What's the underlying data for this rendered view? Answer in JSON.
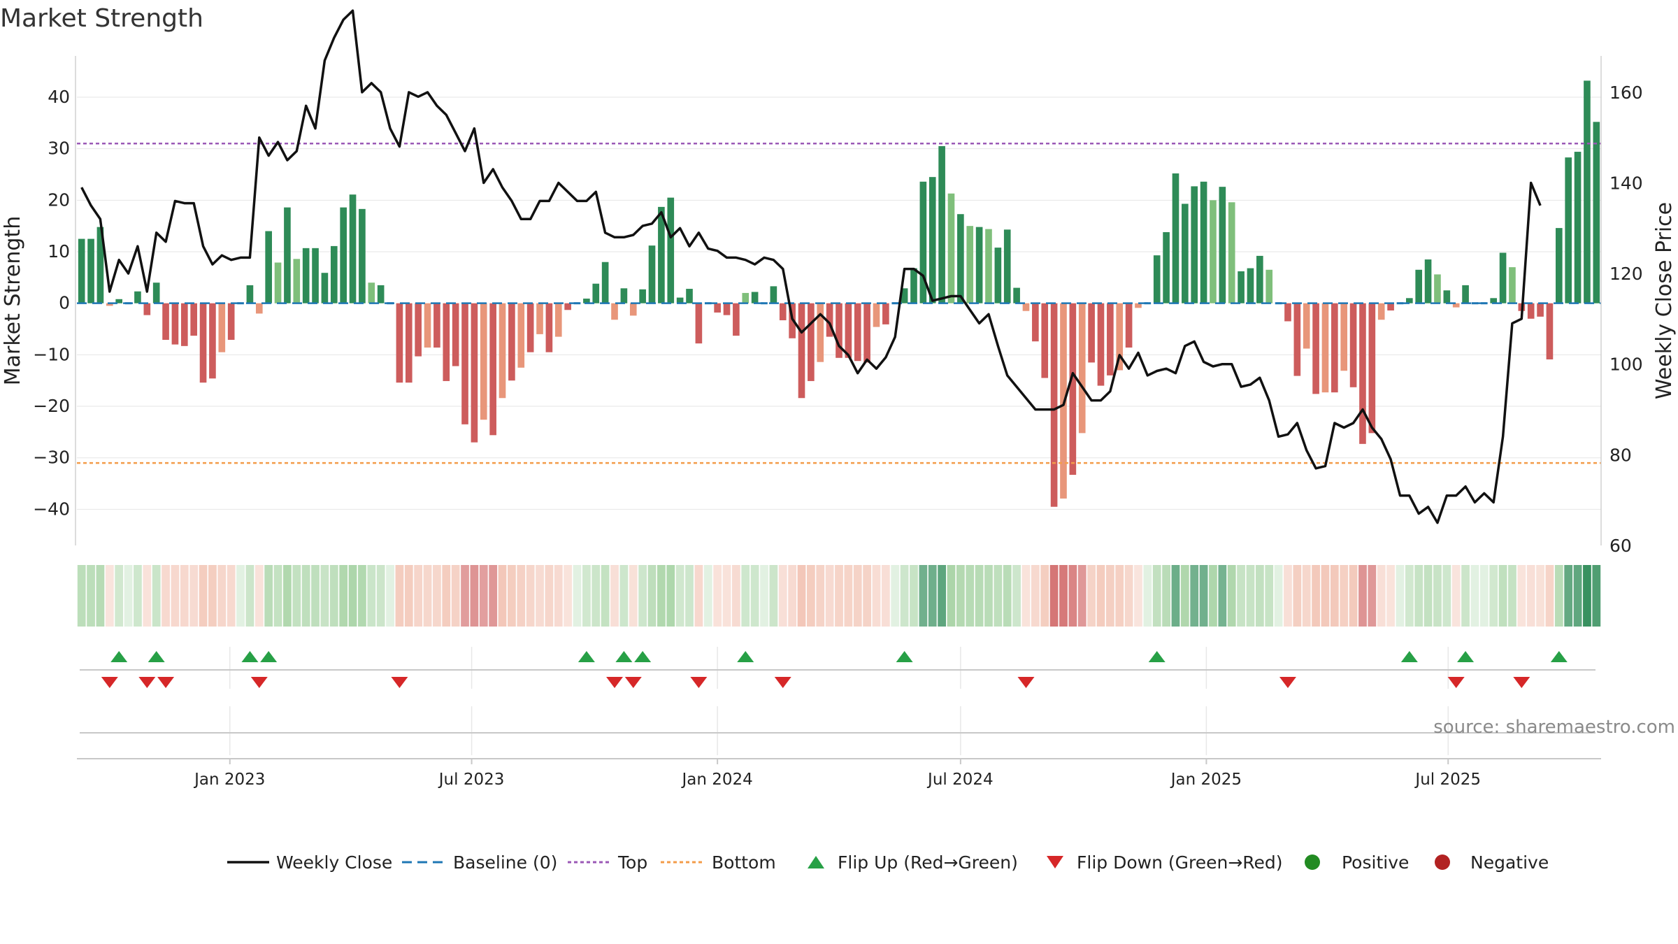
{
  "title": "Market Strength",
  "source": "source: sharemaestro.com",
  "colors": {
    "pos_strong": "#2e8b57",
    "pos_light": "#7fbf7b",
    "neg_strong": "#cd5c5c",
    "neg_light": "#e8967a",
    "close_line": "#111111",
    "baseline": "#1f77b4",
    "top": "#9b59b6",
    "bottom": "#f39c4a",
    "flip_up": "#27a046",
    "flip_down": "#d62728",
    "positive": "#228b22",
    "negative": "#b22222"
  },
  "chart_data": {
    "type": "bar+line",
    "start_date": "2022-09-12",
    "frequency": "weekly",
    "yleft": {
      "label": "Market Strength",
      "ticks": [
        -40,
        -30,
        -20,
        -10,
        0,
        10,
        20,
        30,
        40
      ],
      "lim": [
        -47,
        48
      ]
    },
    "yright": {
      "label": "Weekly Close Price",
      "ticks": [
        60,
        80,
        100,
        120,
        140,
        160
      ],
      "lim": [
        60,
        168
      ]
    },
    "x_ticks": [
      "Jan 2023",
      "Jul 2023",
      "Jan 2024",
      "Jul 2024",
      "Jan 2025",
      "Jul 2025"
    ],
    "top_line": 31,
    "bottom_line": -31,
    "strength": [
      12.5,
      12.5,
      14.8,
      -0.5,
      0.8,
      0,
      2.3,
      -2.3,
      4,
      -7.1,
      -8,
      -8.3,
      -6.3,
      -15.4,
      -14.6,
      -9.5,
      -7.1,
      0,
      3.5,
      -2,
      14,
      7.9,
      18.6,
      8.6,
      10.7,
      10.7,
      5.9,
      11.1,
      18.6,
      21.1,
      18.3,
      4,
      3.5,
      0,
      -15.4,
      -15.4,
      -10.3,
      -8.6,
      -8.6,
      -15.1,
      -12.2,
      -23.5,
      -27,
      -22.6,
      -25.6,
      -18.4,
      -15,
      -12.5,
      -9.5,
      -6,
      -9.5,
      -6.5,
      -1.3,
      0,
      0.9,
      3.8,
      8,
      -3.2,
      2.9,
      -2.4,
      2.7,
      11.2,
      18.7,
      20.5,
      1.1,
      2.8,
      -7.8,
      0,
      -1.8,
      -2.3,
      -6.3,
      2,
      2.2,
      0,
      3.3,
      -3.3,
      -6.8,
      -18.4,
      -15.1,
      -11.4,
      -6.5,
      -10.6,
      -10.6,
      -11.2,
      -11.5,
      -4.6,
      -4.1,
      0,
      2.9,
      6.8,
      23.6,
      24.5,
      30.5,
      21.3,
      17.3,
      15,
      14.8,
      14.4,
      10.8,
      14.3,
      3,
      -1.5,
      -7.4,
      -14.5,
      -39.5,
      -37.9,
      -33.3,
      -25.2,
      -11.5,
      -16,
      -14,
      -13,
      -8.6,
      -0.9,
      0,
      9.3,
      13.8,
      25.2,
      19.3,
      22.7,
      23.6,
      20,
      22.6,
      19.6,
      6.2,
      6.8,
      9.2,
      6.5,
      0,
      -3.5,
      -14.1,
      -8.8,
      -17.6,
      -17.3,
      -17.3,
      -13.1,
      -16.3,
      -27.3,
      -25.2,
      -3.2,
      -1.4,
      0,
      1,
      6.5,
      8.5,
      5.6,
      2.5,
      -0.8,
      3.5,
      0,
      0,
      1,
      9.8,
      7,
      -1.5,
      -3,
      -2.6,
      -10.9,
      14.6,
      28.3,
      29.4,
      43.2,
      35.2
    ],
    "close": [
      139,
      135,
      132,
      116,
      123,
      120,
      126,
      116,
      129,
      127,
      136,
      135.5,
      135.5,
      126,
      122,
      124,
      123,
      123.5,
      123.5,
      150,
      146,
      149,
      145,
      147,
      157,
      152,
      167,
      172,
      176,
      178,
      160,
      162,
      160,
      152,
      148,
      160,
      159,
      160,
      157,
      155,
      151,
      147,
      152,
      140,
      143,
      139,
      136,
      132,
      132,
      136,
      136,
      140,
      138,
      136,
      136,
      138,
      129,
      128,
      128,
      128.5,
      130.5,
      131,
      133.5,
      128,
      130,
      126,
      129,
      125.5,
      125,
      123.5,
      123.5,
      123,
      122,
      123.5,
      123,
      121,
      110,
      107,
      109,
      111,
      109,
      104,
      102,
      98,
      101,
      99,
      101.5,
      106,
      121,
      121,
      119.5,
      114,
      114.5,
      115,
      115,
      112,
      109,
      111,
      104,
      97.5,
      95,
      92.5,
      90,
      90,
      90,
      91,
      98,
      95,
      92,
      92,
      94,
      102,
      99,
      102.5,
      97.5,
      98.5,
      99,
      98,
      104,
      105,
      100.5,
      99.5,
      100,
      100,
      95,
      95.5,
      97,
      92,
      84,
      84.5,
      87,
      81,
      77,
      77.5,
      87,
      86,
      87,
      90,
      86,
      83.5,
      79,
      71,
      71,
      67,
      68.5,
      65,
      71,
      71,
      73,
      69.5,
      71.5,
      69.5,
      84,
      109,
      110,
      140,
      135
    ]
  },
  "legend": [
    {
      "key": "weekly_close",
      "label": "Weekly Close"
    },
    {
      "key": "baseline",
      "label": "Baseline (0)"
    },
    {
      "key": "top",
      "label": "Top"
    },
    {
      "key": "bottom",
      "label": "Bottom"
    },
    {
      "key": "flip_up",
      "label": "Flip Up (Red→Green)"
    },
    {
      "key": "flip_down",
      "label": "Flip Down (Green→Red)"
    },
    {
      "key": "positive",
      "label": "Positive"
    },
    {
      "key": "negative",
      "label": "Negative"
    }
  ]
}
